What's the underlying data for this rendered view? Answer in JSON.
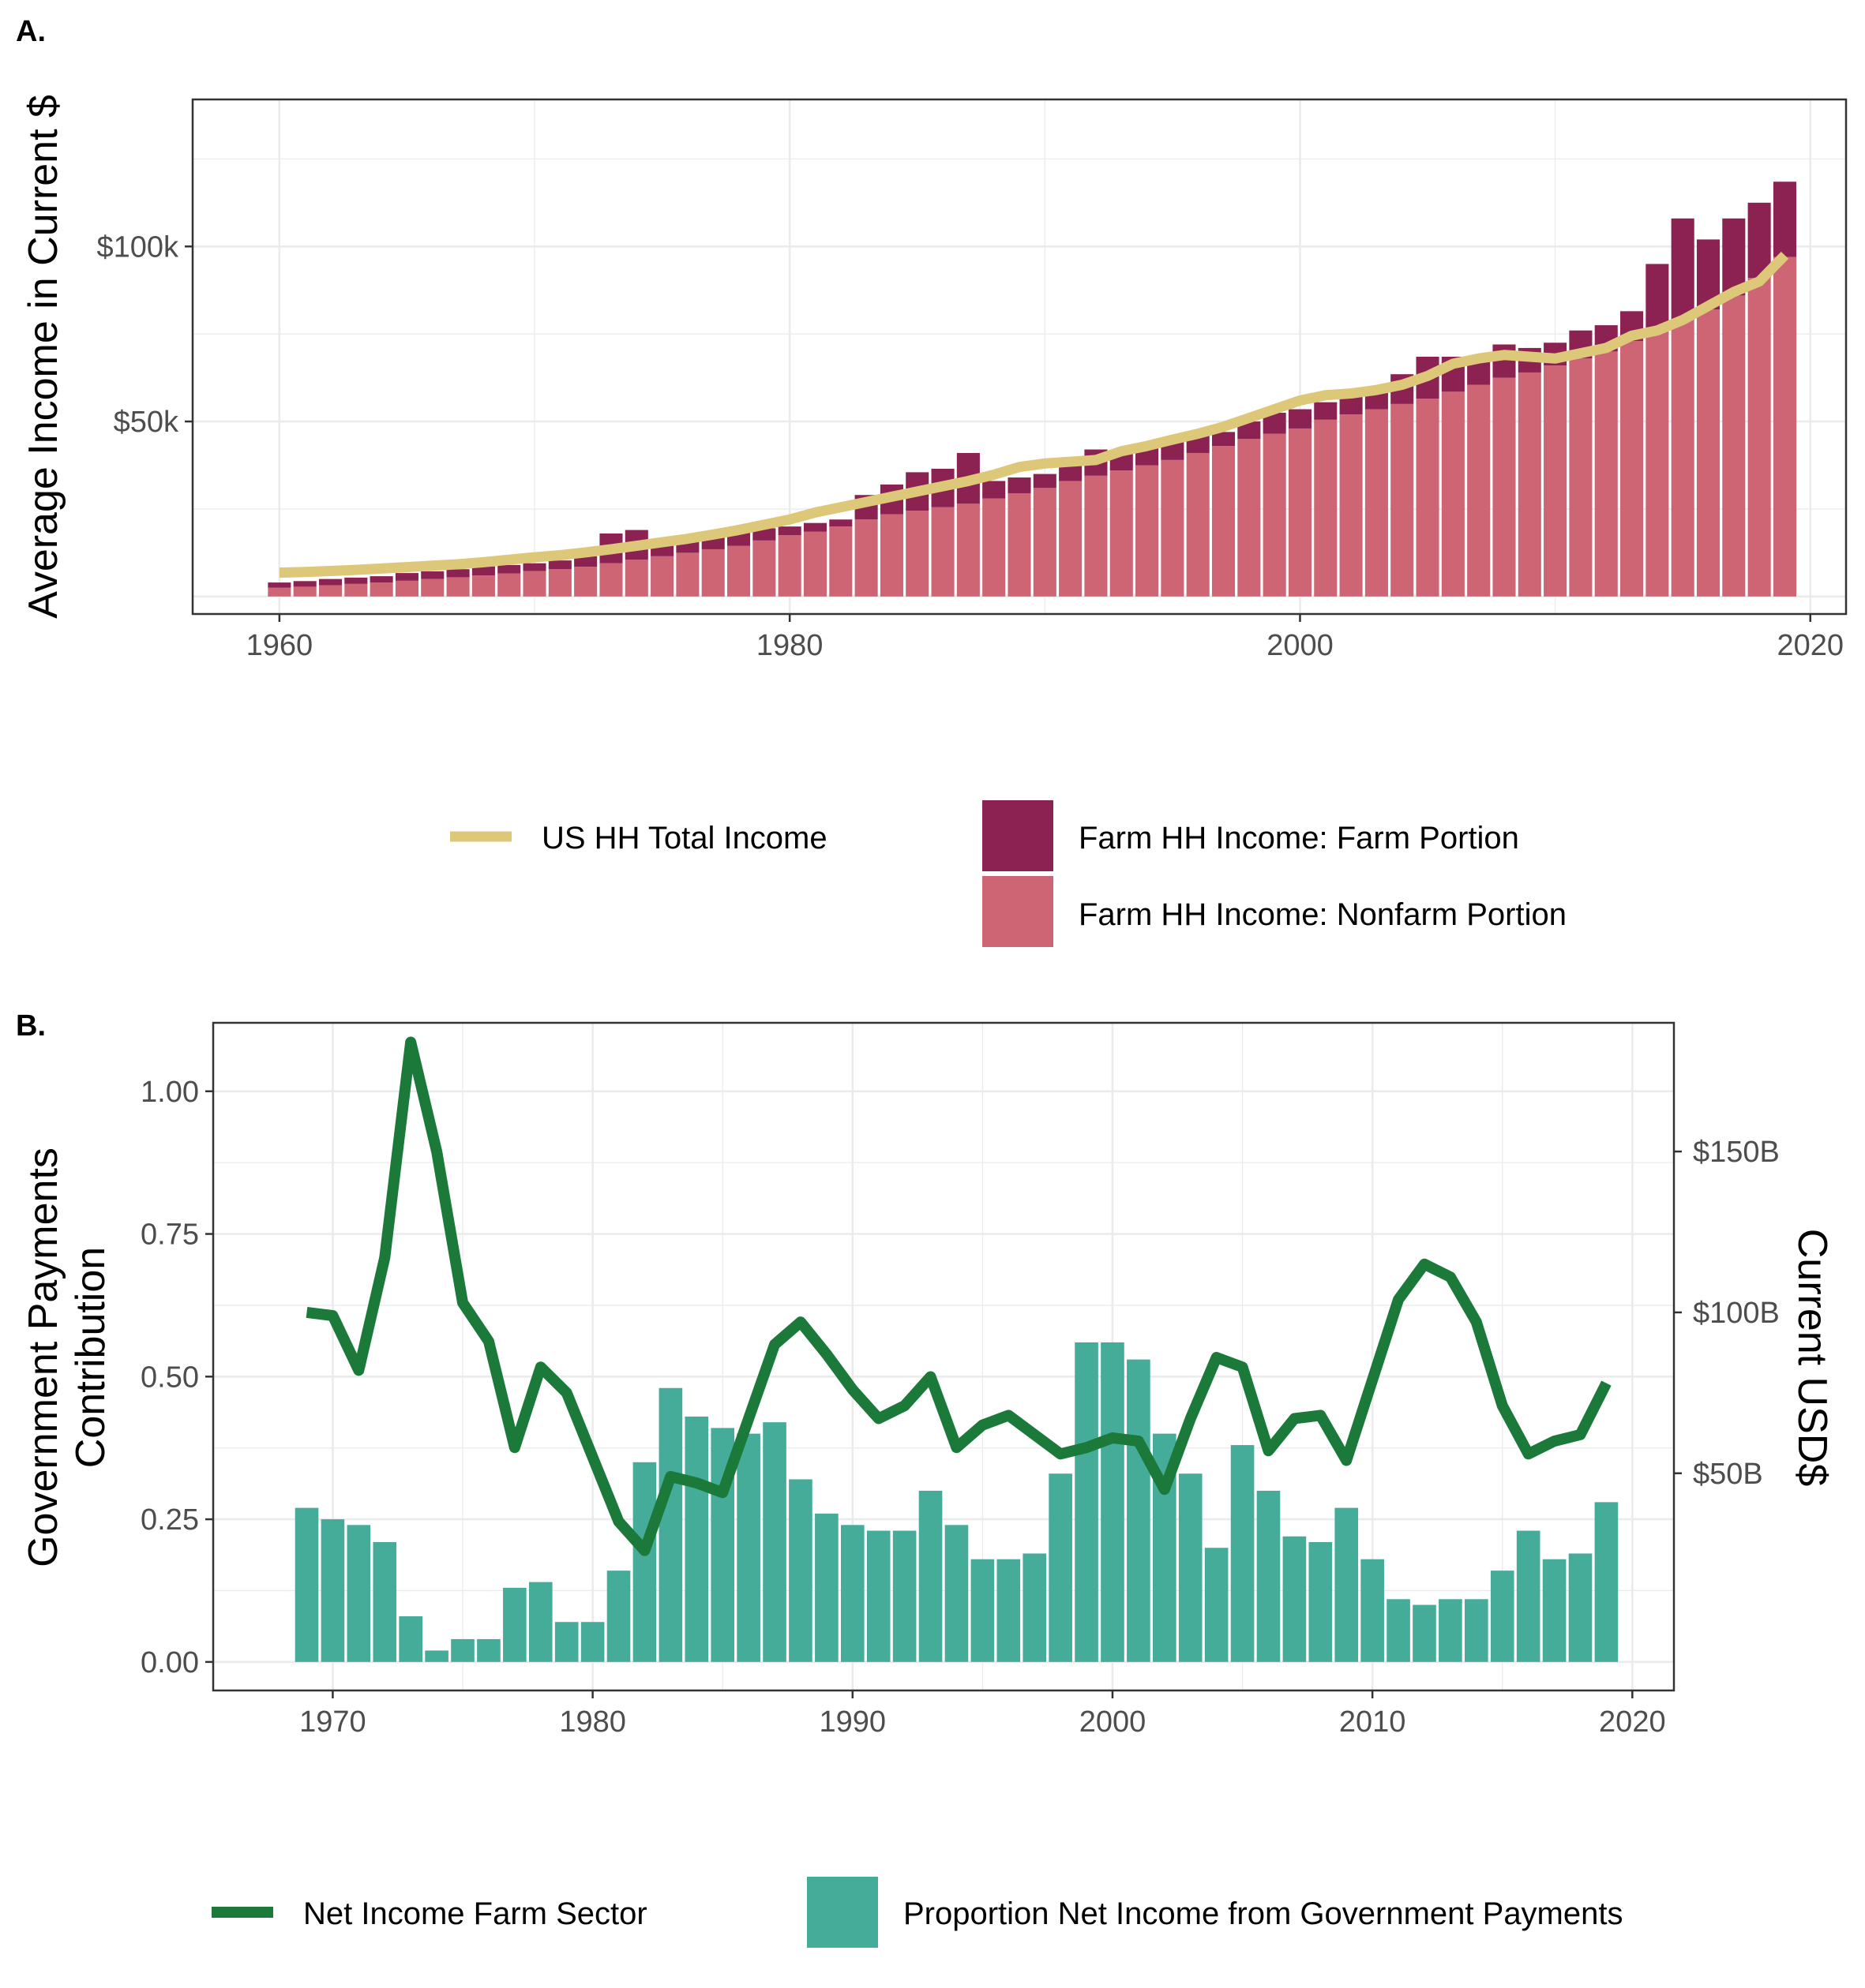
{
  "colors": {
    "farm_portion": "#8B2252",
    "nonfarm_portion": "#CD6575",
    "us_hh_line": "#DCC878",
    "net_income_line": "#1B7A3A",
    "gov_prop_bar": "#45AC9A",
    "grid": "#EBEBEB",
    "panel_border": "#333333"
  },
  "chart_data": [
    {
      "panel_label": "A.",
      "type": "bar",
      "stacked": true,
      "ylabel": "Average Income in Current $",
      "xlabel": "",
      "xlim": [
        1956.6,
        2021.4
      ],
      "ylim": [
        -5000,
        142000
      ],
      "x_ticks": [
        1960,
        1980,
        2000,
        2020
      ],
      "x_tick_labels": [
        "1960",
        "1980",
        "2000",
        "2020"
      ],
      "y_ticks": [
        50000,
        100000
      ],
      "y_tick_labels": [
        "$50k",
        "$100k"
      ],
      "grid": true,
      "legend_position": "bottom",
      "x": [
        1960,
        1961,
        1962,
        1963,
        1964,
        1965,
        1966,
        1967,
        1968,
        1969,
        1970,
        1971,
        1972,
        1973,
        1974,
        1975,
        1976,
        1977,
        1978,
        1979,
        1980,
        1981,
        1982,
        1983,
        1984,
        1985,
        1986,
        1987,
        1988,
        1989,
        1990,
        1991,
        1992,
        1993,
        1994,
        1995,
        1996,
        1997,
        1998,
        1999,
        2000,
        2001,
        2002,
        2003,
        2004,
        2005,
        2006,
        2007,
        2008,
        2009,
        2010,
        2011,
        2012,
        2013,
        2014,
        2015,
        2016,
        2017,
        2018,
        2019
      ],
      "series": [
        {
          "name": "Farm HH Income: Nonfarm Portion",
          "kind": "bar",
          "values": [
            2500,
            2800,
            3200,
            3600,
            4000,
            4500,
            5000,
            5500,
            6000,
            6600,
            7300,
            7800,
            8500,
            9500,
            10500,
            11500,
            12500,
            13500,
            14500,
            16000,
            17500,
            18500,
            20000,
            22000,
            23500,
            24500,
            25500,
            26500,
            28000,
            29500,
            31000,
            33000,
            34500,
            36000,
            37500,
            39000,
            41000,
            43000,
            45000,
            46500,
            48000,
            50500,
            52000,
            53500,
            55000,
            56500,
            58500,
            60500,
            62500,
            64000,
            66000,
            68000,
            70000,
            73000,
            76000,
            79000,
            82000,
            86000,
            91000,
            97000
          ]
        },
        {
          "name": "Farm HH Income: Farm Portion",
          "kind": "bar",
          "values": [
            1500,
            1600,
            1800,
            1800,
            1800,
            2200,
            2200,
            2300,
            2600,
            2400,
            2200,
            2500,
            3000,
            8500,
            8500,
            5000,
            4500,
            4000,
            4500,
            3500,
            2500,
            2500,
            2000,
            7000,
            8500,
            11000,
            11000,
            14500,
            5000,
            4500,
            4000,
            4500,
            7500,
            5500,
            5000,
            5500,
            5000,
            4000,
            5000,
            6000,
            5500,
            5000,
            5500,
            5500,
            8500,
            12000,
            10000,
            7500,
            9500,
            7000,
            6500,
            8000,
            7500,
            8500,
            19000,
            29000,
            20000,
            22000,
            21500,
            21500
          ]
        },
        {
          "name": "US HH Total Income",
          "kind": "line",
          "values": [
            6800,
            7000,
            7300,
            7600,
            8000,
            8400,
            8800,
            9200,
            9800,
            10500,
            11200,
            11800,
            12600,
            13500,
            14500,
            15500,
            16500,
            17700,
            19000,
            20500,
            22000,
            24000,
            25500,
            27000,
            28500,
            30000,
            31500,
            33000,
            34800,
            37000,
            38000,
            38500,
            39000,
            41500,
            43000,
            44800,
            46500,
            48500,
            51000,
            53500,
            56000,
            57500,
            58000,
            59000,
            60500,
            63000,
            66500,
            68000,
            69000,
            68500,
            68000,
            69500,
            71000,
            74500,
            76000,
            79000,
            83000,
            87000,
            90000,
            97500
          ]
        }
      ]
    },
    {
      "panel_label": "B.",
      "type": "bar",
      "dual_axis": true,
      "ylabel": "Government Payments\nContribution",
      "ylabel_lines": [
        "Government Payments",
        "Contribution"
      ],
      "ylabel_right": "Current USD$",
      "xlabel": "",
      "xlim": [
        1965.4,
        2021.6
      ],
      "ylim": [
        -0.05,
        1.12
      ],
      "ylim_right": [
        -17.5,
        190
      ],
      "x_ticks": [
        1970,
        1980,
        1990,
        2000,
        2010,
        2020
      ],
      "x_tick_labels": [
        "1970",
        "1980",
        "1990",
        "2000",
        "2010",
        "2020"
      ],
      "y_ticks": [
        0,
        0.25,
        0.5,
        0.75,
        1.0
      ],
      "y_tick_labels": [
        "0.00",
        "0.25",
        "0.50",
        "0.75",
        "1.00"
      ],
      "y_ticks_right": [
        50,
        100,
        150
      ],
      "y_tick_labels_right": [
        "$50B",
        "$100B",
        "$150B"
      ],
      "grid": true,
      "legend_position": "bottom",
      "x": [
        1969,
        1970,
        1971,
        1972,
        1973,
        1974,
        1975,
        1976,
        1977,
        1978,
        1979,
        1980,
        1981,
        1982,
        1983,
        1984,
        1985,
        1986,
        1987,
        1988,
        1989,
        1990,
        1991,
        1992,
        1993,
        1994,
        1995,
        1996,
        1997,
        1998,
        1999,
        2000,
        2001,
        2002,
        2003,
        2004,
        2005,
        2006,
        2007,
        2008,
        2009,
        2010,
        2011,
        2012,
        2013,
        2014,
        2015,
        2016,
        2017,
        2018,
        2019
      ],
      "series": [
        {
          "name": "Proportion Net Income from Government Payments",
          "kind": "bar",
          "axis": "left",
          "values": [
            0.27,
            0.25,
            0.24,
            0.21,
            0.08,
            0.02,
            0.04,
            0.04,
            0.13,
            0.14,
            0.07,
            0.07,
            0.16,
            0.35,
            0.48,
            0.43,
            0.41,
            0.4,
            0.42,
            0.32,
            0.26,
            0.24,
            0.23,
            0.23,
            0.3,
            0.24,
            0.18,
            0.18,
            0.19,
            0.33,
            0.56,
            0.56,
            0.53,
            0.4,
            0.33,
            0.2,
            0.38,
            0.3,
            0.22,
            0.21,
            0.27,
            0.18,
            0.11,
            0.1,
            0.11,
            0.11,
            0.16,
            0.23,
            0.18,
            0.19,
            0.28
          ]
        },
        {
          "name": "Net Income Farm Sector",
          "kind": "line",
          "axis": "right",
          "values": [
            100,
            99,
            82,
            117,
            184,
            150,
            103,
            91,
            58,
            83,
            75,
            55,
            35,
            26,
            49,
            47,
            44,
            67,
            90,
            97,
            87,
            76,
            67,
            71,
            80,
            58,
            65,
            68,
            62,
            56,
            58,
            61,
            60,
            45,
            67,
            86,
            83,
            57,
            67,
            68,
            54,
            79,
            104,
            115,
            111,
            97,
            71,
            56,
            60,
            62,
            78
          ]
        }
      ]
    }
  ]
}
